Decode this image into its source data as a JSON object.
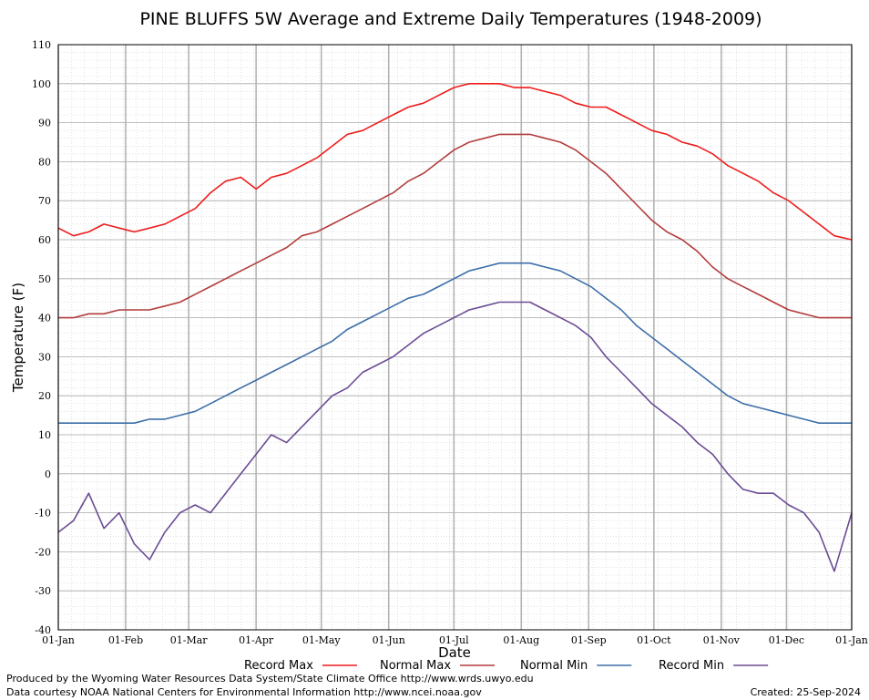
{
  "chart_data": {
    "type": "line",
    "title": "PINE BLUFFS 5W Average and Extreme Daily Temperatures (1948-2009)",
    "xlabel": "Date",
    "ylabel": "Temperature (F)",
    "ylim": [
      -40,
      110
    ],
    "yticks": [
      -40,
      -30,
      -20,
      -10,
      0,
      10,
      20,
      30,
      40,
      50,
      60,
      70,
      80,
      90,
      100,
      110
    ],
    "xlim": [
      1,
      366
    ],
    "xticks": [
      {
        "label": "01-Jan",
        "day": 1
      },
      {
        "label": "01-Feb",
        "day": 32
      },
      {
        "label": "01-Mar",
        "day": 61
      },
      {
        "label": "01-Apr",
        "day": 92
      },
      {
        "label": "01-May",
        "day": 122
      },
      {
        "label": "01-Jun",
        "day": 153
      },
      {
        "label": "01-Jul",
        "day": 183
      },
      {
        "label": "01-Aug",
        "day": 214
      },
      {
        "label": "01-Sep",
        "day": 245
      },
      {
        "label": "01-Oct",
        "day": 275
      },
      {
        "label": "01-Nov",
        "day": 306
      },
      {
        "label": "01-Dec",
        "day": 336
      },
      {
        "label": "01-Jan",
        "day": 366
      }
    ],
    "grid": true,
    "legend_position": "bottom",
    "series": [
      {
        "name": "Record Max",
        "color": "#ee1c1c",
        "x": [
          1,
          8,
          15,
          22,
          29,
          36,
          43,
          50,
          57,
          64,
          71,
          78,
          85,
          92,
          99,
          106,
          113,
          120,
          127,
          134,
          141,
          148,
          155,
          162,
          169,
          176,
          183,
          190,
          197,
          204,
          211,
          218,
          225,
          232,
          239,
          246,
          253,
          260,
          267,
          274,
          281,
          288,
          295,
          302,
          309,
          316,
          323,
          330,
          337,
          344,
          351,
          358,
          366
        ],
        "y": [
          63,
          61,
          62,
          64,
          63,
          62,
          63,
          64,
          66,
          68,
          72,
          75,
          76,
          73,
          76,
          77,
          79,
          81,
          84,
          87,
          88,
          90,
          92,
          94,
          95,
          97,
          99,
          100,
          100,
          100,
          99,
          99,
          98,
          97,
          95,
          94,
          94,
          92,
          90,
          88,
          87,
          85,
          84,
          82,
          79,
          77,
          75,
          72,
          70,
          67,
          64,
          61,
          60
        ]
      },
      {
        "name": "Normal Max",
        "color": "#b33c3c",
        "x": [
          1,
          8,
          15,
          22,
          29,
          36,
          43,
          50,
          57,
          64,
          71,
          78,
          85,
          92,
          99,
          106,
          113,
          120,
          127,
          134,
          141,
          148,
          155,
          162,
          169,
          176,
          183,
          190,
          197,
          204,
          211,
          218,
          225,
          232,
          239,
          246,
          253,
          260,
          267,
          274,
          281,
          288,
          295,
          302,
          309,
          316,
          323,
          330,
          337,
          344,
          351,
          358,
          366
        ],
        "y": [
          40,
          40,
          41,
          41,
          42,
          42,
          42,
          43,
          44,
          46,
          48,
          50,
          52,
          54,
          56,
          58,
          61,
          62,
          64,
          66,
          68,
          70,
          72,
          75,
          77,
          80,
          83,
          85,
          86,
          87,
          87,
          87,
          86,
          85,
          83,
          80,
          77,
          73,
          69,
          65,
          62,
          60,
          57,
          53,
          50,
          48,
          46,
          44,
          42,
          41,
          40,
          40,
          40
        ]
      },
      {
        "name": "Normal Min",
        "color": "#3c6ea8",
        "x": [
          1,
          8,
          15,
          22,
          29,
          36,
          43,
          50,
          57,
          64,
          71,
          78,
          85,
          92,
          99,
          106,
          113,
          120,
          127,
          134,
          141,
          148,
          155,
          162,
          169,
          176,
          183,
          190,
          197,
          204,
          211,
          218,
          225,
          232,
          239,
          246,
          253,
          260,
          267,
          274,
          281,
          288,
          295,
          302,
          309,
          316,
          323,
          330,
          337,
          344,
          351,
          358,
          366
        ],
        "y": [
          13,
          13,
          13,
          13,
          13,
          13,
          14,
          14,
          15,
          16,
          18,
          20,
          22,
          24,
          26,
          28,
          30,
          32,
          34,
          37,
          39,
          41,
          43,
          45,
          46,
          48,
          50,
          52,
          53,
          54,
          54,
          54,
          53,
          52,
          50,
          48,
          45,
          42,
          38,
          35,
          32,
          29,
          26,
          23,
          20,
          18,
          17,
          16,
          15,
          14,
          13,
          13,
          13
        ]
      },
      {
        "name": "Record Min",
        "color": "#6a4c94",
        "x": [
          1,
          8,
          15,
          22,
          29,
          36,
          43,
          50,
          57,
          64,
          71,
          78,
          85,
          92,
          99,
          106,
          113,
          120,
          127,
          134,
          141,
          148,
          155,
          162,
          169,
          176,
          183,
          190,
          197,
          204,
          211,
          218,
          225,
          232,
          239,
          246,
          253,
          260,
          267,
          274,
          281,
          288,
          295,
          302,
          309,
          316,
          323,
          330,
          337,
          344,
          351,
          358,
          366
        ],
        "y": [
          -15,
          -12,
          -5,
          -14,
          -10,
          -18,
          -22,
          -15,
          -10,
          -8,
          -10,
          -5,
          0,
          5,
          10,
          8,
          12,
          16,
          20,
          22,
          26,
          28,
          30,
          33,
          36,
          38,
          40,
          42,
          43,
          44,
          44,
          44,
          42,
          40,
          38,
          35,
          30,
          26,
          22,
          18,
          15,
          12,
          8,
          5,
          0,
          -4,
          -5,
          -5,
          -8,
          -10,
          -15,
          -25,
          -10
        ]
      }
    ]
  },
  "legend": {
    "items": [
      {
        "label": "Record Max",
        "color": "#ee1c1c"
      },
      {
        "label": "Normal Max",
        "color": "#b33c3c"
      },
      {
        "label": "Normal Min",
        "color": "#3c6ea8"
      },
      {
        "label": "Record Min",
        "color": "#6a4c94"
      }
    ]
  },
  "footer": {
    "line1": "Produced by the Wyoming Water Resources Data System/State Climate Office http://www.wrds.uwyo.edu",
    "line2": "Data courtesy NOAA National Centers for Environmental Information http://www.ncei.noaa.gov",
    "created": "Created:  25-Sep-2024"
  }
}
